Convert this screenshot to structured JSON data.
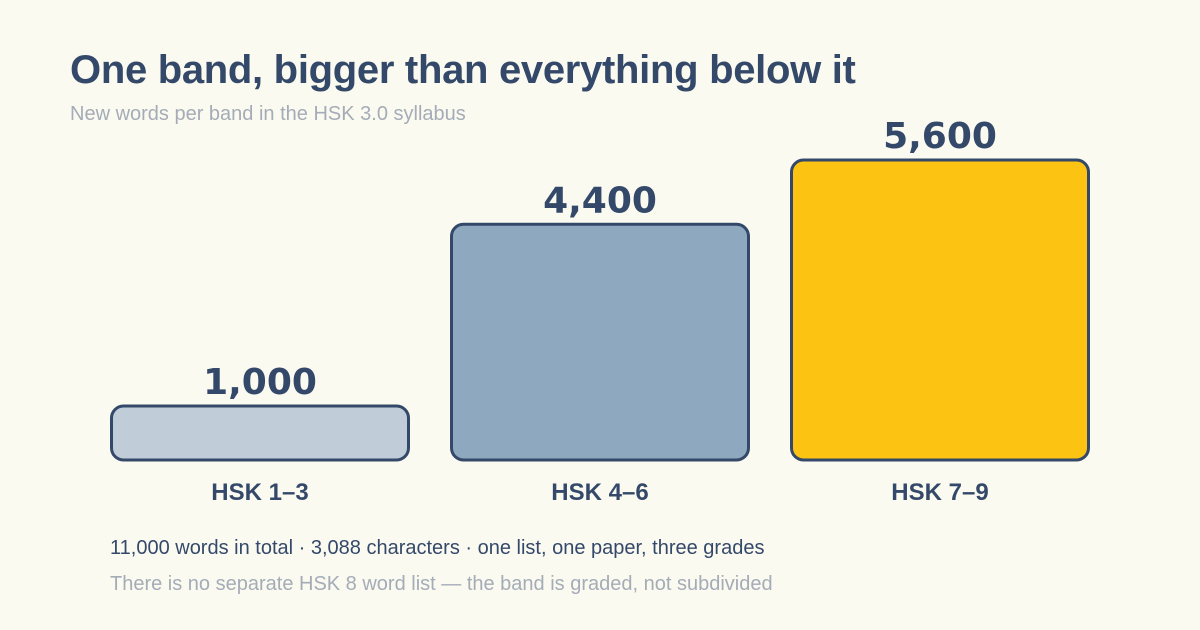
{
  "header": {
    "title": "One band, bigger than everything below it",
    "subtitle": "New words per band in the HSK 3.0 syllabus"
  },
  "footer": {
    "note": "11,000 words in total · 3,088 characters · one list, one paper, three grades",
    "footnote": "There is no separate HSK 8 word list — the band is graded, not subdivided"
  },
  "colors": {
    "text": "#34496a",
    "muted": "#a4acb7",
    "stroke": "#34496a",
    "bars": [
      "#c1ccd9",
      "#8ea8bf",
      "#fcc312"
    ]
  },
  "chart_data": {
    "type": "bar",
    "title": "One band, bigger than everything below it",
    "subtitle": "New words per band in the HSK 3.0 syllabus",
    "categories": [
      "HSK 1–3",
      "HSK 4–6",
      "HSK 7–9"
    ],
    "values": [
      1000,
      4400,
      5600
    ],
    "value_labels": [
      "1,000",
      "4,400",
      "5,600"
    ],
    "xlabel": "",
    "ylabel": "",
    "ylim": [
      0,
      5600
    ],
    "grid": false,
    "legend": "none"
  }
}
